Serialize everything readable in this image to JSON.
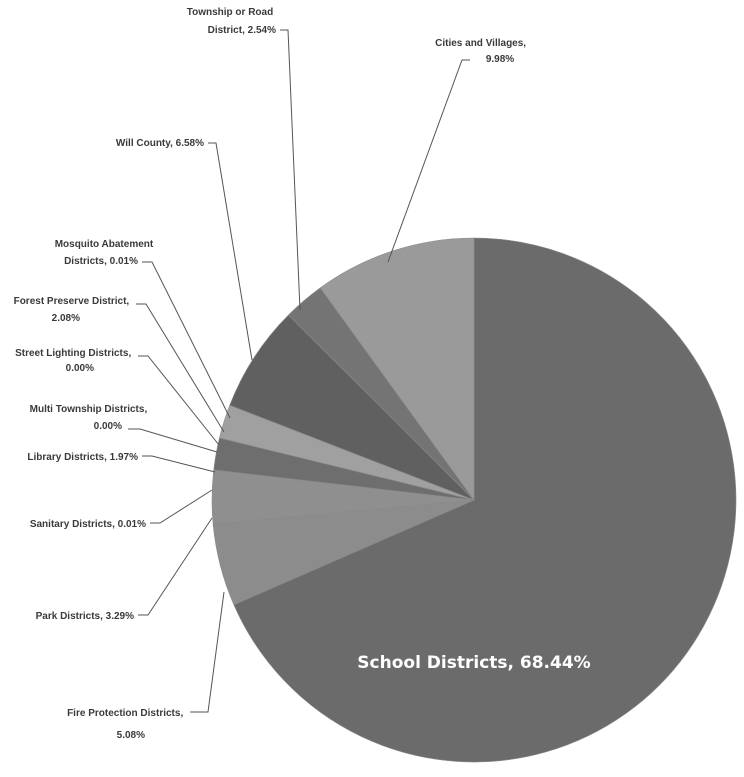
{
  "chart_data": {
    "type": "pie",
    "slices": [
      {
        "label": "School Districts",
        "value_label": "68.44%",
        "value": 68.44,
        "color": "#6b6b6b"
      },
      {
        "label": "Fire Protection Districts",
        "value_label": "5.08%",
        "value": 5.08,
        "color": "#8c8c8c"
      },
      {
        "label": "Park Districts",
        "value_label": "3.29%",
        "value": 3.29,
        "color": "#8f8f8f"
      },
      {
        "label": "Sanitary Districts",
        "value_label": "0.01%",
        "value": 0.01,
        "color": "#7a7a7a"
      },
      {
        "label": "Library Districts",
        "value_label": "1.97%",
        "value": 1.97,
        "color": "#6e6e6e"
      },
      {
        "label": "Multi Township Districts",
        "value_label": "0.00%",
        "value": 0.0,
        "color": "#7a7a7a"
      },
      {
        "label": "Street Lighting Districts",
        "value_label": "0.00%",
        "value": 0.0,
        "color": "#7a7a7a"
      },
      {
        "label": "Forest Preserve District",
        "value_label": "2.08%",
        "value": 2.08,
        "color": "#a0a0a0"
      },
      {
        "label": "Mosquito Abatement Districts",
        "value_label": "0.01%",
        "value": 0.01,
        "color": "#7a7a7a"
      },
      {
        "label": "Will County",
        "value_label": "6.58%",
        "value": 6.58,
        "color": "#606060"
      },
      {
        "label": "Township or Road District",
        "value_label": "2.54%",
        "value": 2.54,
        "color": "#747474"
      },
      {
        "label": "Cities and Villages",
        "value_label": "9.98%",
        "value": 9.98,
        "color": "#9a9a9a"
      }
    ]
  },
  "labels": {
    "school": "School Districts, 68.44%",
    "fire": [
      "Fire Protection Districts,",
      "5.08%"
    ],
    "park": [
      "Park Districts, 3.29%"
    ],
    "sanitary": [
      "Sanitary Districts, 0.01%"
    ],
    "library": [
      "Library Districts, 1.97%"
    ],
    "multi": [
      "Multi Township Districts,",
      "0.00%"
    ],
    "street": [
      "Street Lighting Districts,",
      "0.00%"
    ],
    "forest": [
      "Forest Preserve District,",
      "2.08%"
    ],
    "mosquito": [
      "Mosquito Abatement",
      "Districts, 0.01%"
    ],
    "will": [
      "Will County, 6.58%"
    ],
    "township": [
      "Township or Road",
      "District, 2.54%"
    ],
    "cities": [
      "Cities and Villages,",
      "9.98%"
    ]
  }
}
